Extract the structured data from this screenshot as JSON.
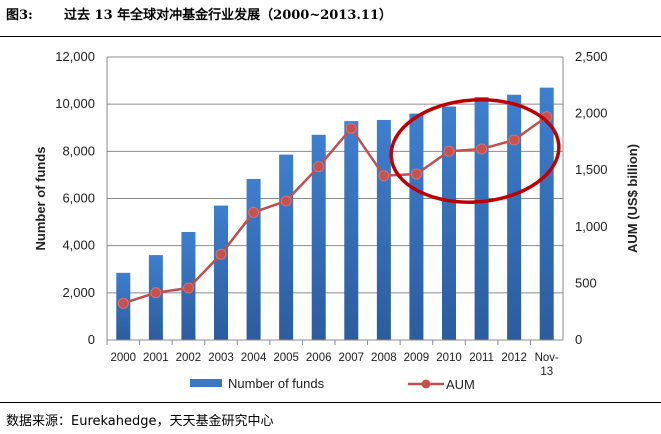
{
  "header": {
    "figure_number": "图3:",
    "title": "过去 13 年全球对冲基金行业发展（2000~2013.11）"
  },
  "source": "数据来源：Eurekahedge，天天基金研究中心",
  "chart_data": {
    "type": "bar+line",
    "categories": [
      "2000",
      "2001",
      "2002",
      "2003",
      "2004",
      "2005",
      "2006",
      "2007",
      "2008",
      "2009",
      "2010",
      "2011",
      "2012",
      "Nov-13"
    ],
    "series": [
      {
        "name": "Number of funds",
        "type": "bar",
        "axis": "left",
        "color": "#3a78c3",
        "values": [
          2850,
          3600,
          4580,
          5700,
          6830,
          7860,
          8700,
          9280,
          9330,
          9600,
          9900,
          10300,
          10400,
          10700
        ]
      },
      {
        "name": "AUM",
        "type": "line",
        "axis": "right",
        "color": "#c0504d",
        "values": [
          324,
          418,
          459,
          757,
          1128,
          1228,
          1531,
          1870,
          1451,
          1466,
          1667,
          1687,
          1767,
          1973
        ]
      }
    ],
    "ylabel_left": "Number of funds",
    "ylabel_right": "AUM (US$ billion)",
    "ylim_left": [
      0,
      12000
    ],
    "ylim_right": [
      0,
      2500
    ],
    "yticks_left": [
      "0",
      "2,000",
      "4,000",
      "6,000",
      "8,000",
      "10,000",
      "12,000"
    ],
    "yticks_right": [
      "0",
      "500",
      "1,000",
      "1,500",
      "2,000",
      "2,500"
    ],
    "grid": true,
    "legend_position": "bottom",
    "annotation": "red ellipse highlighting 2009–Nov-13"
  }
}
